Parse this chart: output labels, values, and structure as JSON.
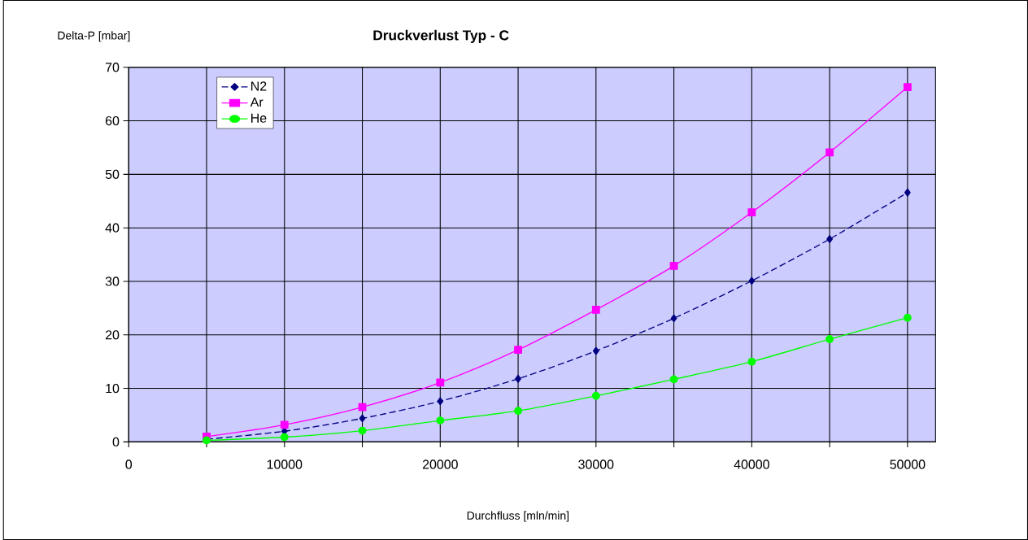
{
  "chart_data": {
    "type": "line",
    "title": "Druckverlust Typ - C",
    "ylabel": "Delta-P [mbar]",
    "xlabel": "Durchfluss [mln/min]",
    "x": [
      5000,
      10000,
      15000,
      20000,
      25000,
      30000,
      35000,
      40000,
      45000,
      50000
    ],
    "series": [
      {
        "name": "N2",
        "color": "#000080",
        "marker": "diamond",
        "line_style": "dashed",
        "values": [
          0.5,
          2.0,
          4.4,
          7.6,
          11.8,
          17.0,
          23.1,
          30.1,
          37.9,
          46.6
        ]
      },
      {
        "name": "Ar",
        "color": "#ff00ff",
        "marker": "square",
        "line_style": "solid",
        "values": [
          1.0,
          3.2,
          6.5,
          11.1,
          17.2,
          24.7,
          32.9,
          42.9,
          54.1,
          66.3
        ]
      },
      {
        "name": "He",
        "color": "#00ff00",
        "marker": "circle",
        "line_style": "solid",
        "values": [
          0.3,
          0.9,
          2.1,
          4.0,
          5.8,
          8.6,
          11.7,
          15.0,
          19.2,
          23.2
        ]
      }
    ],
    "xlim": [
      0,
      51800
    ],
    "ylim": [
      0,
      70
    ],
    "xticks": [
      0,
      {
        "value": 5000,
        "label": null
      },
      10000,
      {
        "value": 15000,
        "label": null
      },
      20000,
      {
        "value": 25000,
        "label": null
      },
      30000,
      {
        "value": 35000,
        "label": null
      },
      40000,
      {
        "value": 45000,
        "label": null
      },
      50000
    ],
    "yticks": [
      0,
      10,
      20,
      30,
      40,
      50,
      60,
      70
    ],
    "grid": true,
    "legend": "top left"
  }
}
